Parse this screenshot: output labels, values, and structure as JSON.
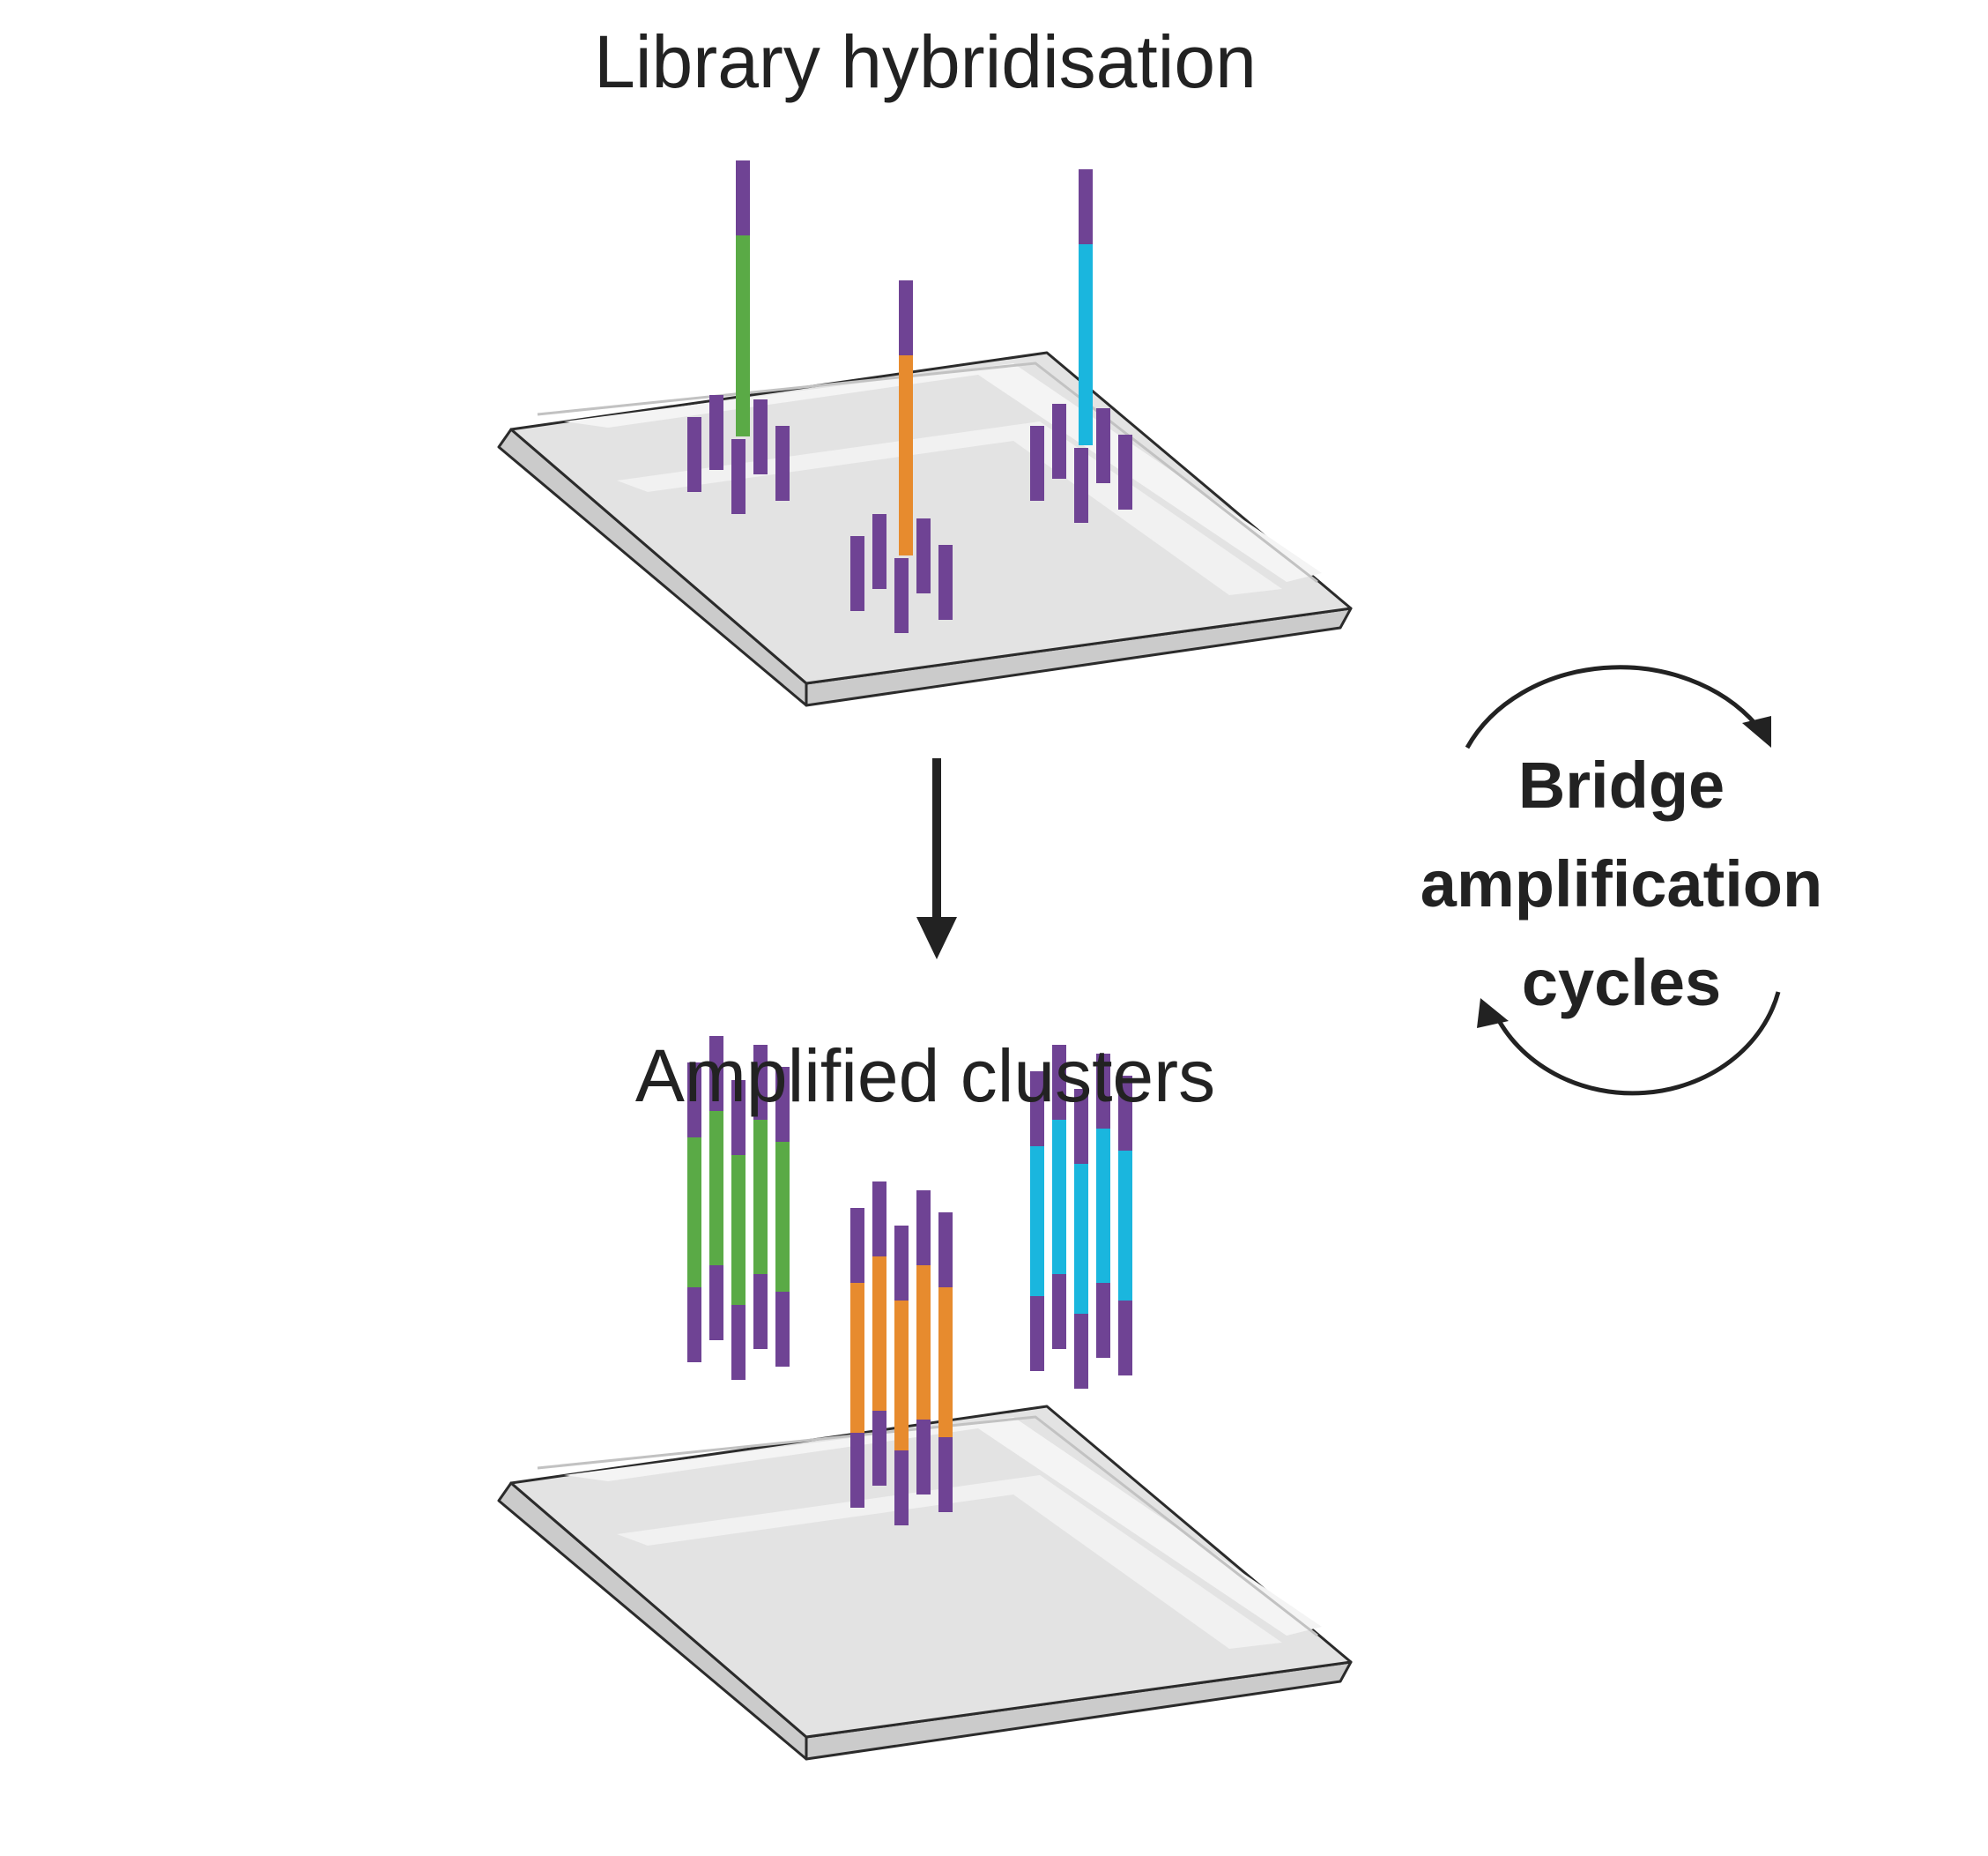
{
  "labels": {
    "top_title": "Library hybridisation",
    "bottom_title": "Amplified clusters",
    "cycle_lines": [
      "Bridge",
      "amplification",
      "cycles"
    ]
  },
  "colors": {
    "adapter": "#6f4394",
    "green": "#5aaa46",
    "orange": "#e78b2e",
    "cyan": "#1ab6de",
    "slide_top": "#e3e3e3",
    "slide_highlight": "#f4f4f4",
    "slide_side": "#cbcbcb",
    "slide_outline": "#2b2b2b",
    "arrow": "#222222"
  },
  "icons": [
    "down-arrow-icon",
    "cycle-arrow-top-icon",
    "cycle-arrow-bottom-icon"
  ]
}
